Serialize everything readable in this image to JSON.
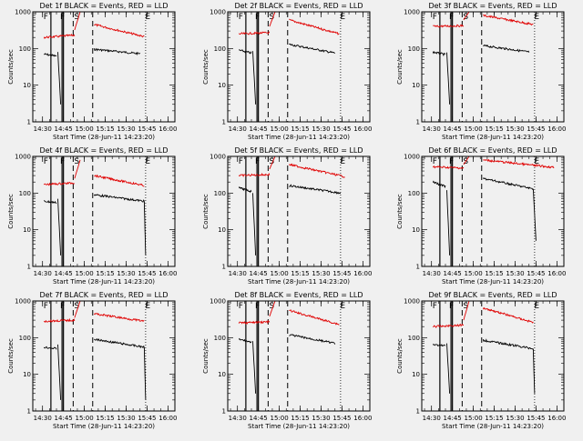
{
  "figure": {
    "background": "#f0f0f0",
    "colors": {
      "events": "#000000",
      "lld": "#e00000",
      "axes": "#000000"
    }
  },
  "chart_data": [
    {
      "type": "line",
      "title": "Det 1f BLACK = Events, RED = LLD",
      "xlabel": "Start Time (28-Jun-11 14:23:20)",
      "ylabel": "Counts/sec",
      "yscale": "log",
      "ylim": [
        1,
        1000
      ],
      "x_ticks": [
        "14:30",
        "14:45",
        "15:00",
        "15:15",
        "15:30",
        "15:45",
        "16:00"
      ],
      "y_ticks": [
        "1",
        "10",
        "100",
        "1000"
      ],
      "markers": [
        "F",
        "F",
        "S",
        "E"
      ],
      "series": [
        {
          "color": "#000000",
          "segments": [
            {
              "t0": "14:31",
              "t1": "14:40",
              "from": 70,
              "to": 62
            },
            {
              "t0": "14:41",
              "t1": "14:43",
              "from": 80,
              "to": 3
            },
            {
              "t0": "15:07",
              "t1": "15:40",
              "from": 95,
              "to": 72
            }
          ]
        },
        {
          "color": "#e00000",
          "segments": [
            {
              "t0": "14:31",
              "t1": "14:53",
              "from": 200,
              "to": 230
            },
            {
              "t0": "14:53",
              "t1": "14:57",
              "from": 320,
              "to": 1000
            },
            {
              "t0": "15:07",
              "t1": "15:43",
              "from": 450,
              "to": 210
            }
          ]
        }
      ],
      "vlines": [
        {
          "time": "14:36",
          "style": "solid"
        },
        {
          "time": "14:44",
          "style": "solid"
        },
        {
          "time": "14:45",
          "style": "solid"
        },
        {
          "time": "14:52",
          "style": "dashed"
        },
        {
          "time": "15:06",
          "style": "dashed"
        },
        {
          "time": "15:44",
          "style": "dotted"
        }
      ]
    },
    {
      "type": "line",
      "title": "Det 2f BLACK = Events, RED = LLD",
      "xlabel": "Start Time (28-Jun-11 14:23:20)",
      "ylabel": "Counts/sec",
      "yscale": "log",
      "ylim": [
        1,
        1000
      ],
      "x_ticks": [
        "14:30",
        "14:45",
        "15:00",
        "15:15",
        "15:30",
        "15:45",
        "16:00"
      ],
      "y_ticks": [
        "1",
        "10",
        "100",
        "1000"
      ],
      "markers": [
        "F",
        "F",
        "S",
        "E"
      ],
      "series": [
        {
          "color": "#000000",
          "segments": [
            {
              "t0": "14:31",
              "t1": "14:40",
              "from": 90,
              "to": 75
            },
            {
              "t0": "14:41",
              "t1": "14:43",
              "from": 85,
              "to": 3
            },
            {
              "t0": "15:07",
              "t1": "15:40",
              "from": 130,
              "to": 75
            }
          ]
        },
        {
          "color": "#e00000",
          "segments": [
            {
              "t0": "14:31",
              "t1": "14:53",
              "from": 250,
              "to": 270
            },
            {
              "t0": "14:53",
              "t1": "14:57",
              "from": 400,
              "to": 1000
            },
            {
              "t0": "15:07",
              "t1": "15:43",
              "from": 600,
              "to": 250
            }
          ]
        }
      ],
      "vlines": [
        {
          "time": "14:36",
          "style": "solid"
        },
        {
          "time": "14:44",
          "style": "solid"
        },
        {
          "time": "14:45",
          "style": "solid"
        },
        {
          "time": "14:52",
          "style": "dashed"
        },
        {
          "time": "15:06",
          "style": "dashed"
        },
        {
          "time": "15:44",
          "style": "dotted"
        }
      ]
    },
    {
      "type": "line",
      "title": "Det 3f BLACK = Events, RED = LLD",
      "xlabel": "Start Time (28-Jun-11 14:23:20)",
      "ylabel": "Counts/sec",
      "yscale": "log",
      "ylim": [
        1,
        1000
      ],
      "x_ticks": [
        "14:30",
        "14:45",
        "15:00",
        "15:15",
        "15:30",
        "15:45",
        "16:00"
      ],
      "y_ticks": [
        "1",
        "10",
        "100",
        "1000"
      ],
      "markers": [
        "F",
        "F",
        "S",
        "E"
      ],
      "series": [
        {
          "color": "#000000",
          "segments": [
            {
              "t0": "14:31",
              "t1": "14:40",
              "from": 80,
              "to": 68
            },
            {
              "t0": "14:41",
              "t1": "14:43",
              "from": 78,
              "to": 3
            },
            {
              "t0": "15:07",
              "t1": "15:40",
              "from": 120,
              "to": 80
            }
          ]
        },
        {
          "color": "#e00000",
          "segments": [
            {
              "t0": "14:31",
              "t1": "14:53",
              "from": 400,
              "to": 420
            },
            {
              "t0": "14:53",
              "t1": "14:57",
              "from": 600,
              "to": 1000
            },
            {
              "t0": "15:07",
              "t1": "15:43",
              "from": 800,
              "to": 450
            }
          ]
        }
      ],
      "vlines": [
        {
          "time": "14:36",
          "style": "solid"
        },
        {
          "time": "14:44",
          "style": "solid"
        },
        {
          "time": "14:45",
          "style": "solid"
        },
        {
          "time": "14:52",
          "style": "dashed"
        },
        {
          "time": "15:06",
          "style": "dashed"
        },
        {
          "time": "15:44",
          "style": "dotted"
        }
      ]
    },
    {
      "type": "line",
      "title": "Det 4f BLACK = Events, RED = LLD",
      "xlabel": "Start Time (28-Jun-11 14:23:20)",
      "ylabel": "Counts/sec",
      "yscale": "log",
      "ylim": [
        1,
        1000
      ],
      "x_ticks": [
        "14:30",
        "14:45",
        "15:00",
        "15:15",
        "15:30",
        "15:45",
        "16:00"
      ],
      "y_ticks": [
        "1",
        "10",
        "100",
        "1000"
      ],
      "markers": [
        "F",
        "F",
        "S",
        "E"
      ],
      "series": [
        {
          "color": "#000000",
          "segments": [
            {
              "t0": "14:31",
              "t1": "14:40",
              "from": 60,
              "to": 55
            },
            {
              "t0": "14:41",
              "t1": "14:43",
              "from": 70,
              "to": 2
            },
            {
              "t0": "15:07",
              "t1": "15:43",
              "from": 90,
              "to": 60
            },
            {
              "t0": "15:43",
              "t1": "15:44",
              "from": 60,
              "to": 2
            }
          ]
        },
        {
          "color": "#e00000",
          "segments": [
            {
              "t0": "14:31",
              "t1": "14:53",
              "from": 170,
              "to": 190
            },
            {
              "t0": "14:53",
              "t1": "14:57",
              "from": 250,
              "to": 800
            },
            {
              "t0": "15:07",
              "t1": "15:43",
              "from": 300,
              "to": 160
            }
          ]
        }
      ],
      "vlines": [
        {
          "time": "14:36",
          "style": "solid"
        },
        {
          "time": "14:44",
          "style": "solid"
        },
        {
          "time": "14:45",
          "style": "solid"
        },
        {
          "time": "14:52",
          "style": "dashed"
        },
        {
          "time": "15:06",
          "style": "dashed"
        },
        {
          "time": "15:44",
          "style": "dotted"
        }
      ]
    },
    {
      "type": "line",
      "title": "Det 5f BLACK = Events, RED = LLD",
      "xlabel": "Start Time (28-Jun-11 14:23:20)",
      "ylabel": "Counts/sec",
      "yscale": "log",
      "ylim": [
        1,
        1000
      ],
      "x_ticks": [
        "14:30",
        "14:45",
        "15:00",
        "15:15",
        "15:30",
        "15:45",
        "16:00"
      ],
      "y_ticks": [
        "1",
        "10",
        "100",
        "1000"
      ],
      "markers": [
        "F",
        "F",
        "S",
        "E"
      ],
      "series": [
        {
          "color": "#000000",
          "segments": [
            {
              "t0": "14:31",
              "t1": "14:40",
              "from": 140,
              "to": 110
            },
            {
              "t0": "14:41",
              "t1": "14:43",
              "from": 100,
              "to": 2
            },
            {
              "t0": "15:07",
              "t1": "15:44",
              "from": 160,
              "to": 100
            }
          ]
        },
        {
          "color": "#e00000",
          "segments": [
            {
              "t0": "14:31",
              "t1": "14:53",
              "from": 300,
              "to": 320
            },
            {
              "t0": "14:53",
              "t1": "14:57",
              "from": 450,
              "to": 1000
            },
            {
              "t0": "15:07",
              "t1": "15:47",
              "from": 600,
              "to": 280
            }
          ]
        }
      ],
      "vlines": [
        {
          "time": "14:36",
          "style": "solid"
        },
        {
          "time": "14:44",
          "style": "solid"
        },
        {
          "time": "14:45",
          "style": "solid"
        },
        {
          "time": "14:52",
          "style": "dashed"
        },
        {
          "time": "15:06",
          "style": "dashed"
        },
        {
          "time": "15:44",
          "style": "dotted"
        }
      ]
    },
    {
      "type": "line",
      "title": "Det 6f BLACK = Events, RED = LLD",
      "xlabel": "Start Time (28-Jun-11 14:23:20)",
      "ylabel": "Counts/sec",
      "yscale": "log",
      "ylim": [
        1,
        1000
      ],
      "x_ticks": [
        "14:30",
        "14:45",
        "15:00",
        "15:15",
        "15:30",
        "15:45",
        "16:00"
      ],
      "y_ticks": [
        "1",
        "10",
        "100",
        "1000"
      ],
      "markers": [
        "F",
        "F",
        "S",
        "E"
      ],
      "series": [
        {
          "color": "#000000",
          "segments": [
            {
              "t0": "14:31",
              "t1": "14:40",
              "from": 200,
              "to": 150
            },
            {
              "t0": "14:41",
              "t1": "14:43",
              "from": 120,
              "to": 2
            },
            {
              "t0": "15:07",
              "t1": "15:43",
              "from": 250,
              "to": 130
            },
            {
              "t0": "15:43",
              "t1": "15:45",
              "from": 130,
              "to": 5
            }
          ]
        },
        {
          "color": "#e00000",
          "segments": [
            {
              "t0": "14:31",
              "t1": "14:53",
              "from": 520,
              "to": 480
            },
            {
              "t0": "14:53",
              "t1": "14:57",
              "from": 600,
              "to": 1000
            },
            {
              "t0": "15:07",
              "t1": "15:58",
              "from": 800,
              "to": 500
            }
          ]
        }
      ],
      "vlines": [
        {
          "time": "14:36",
          "style": "solid"
        },
        {
          "time": "14:44",
          "style": "solid"
        },
        {
          "time": "14:45",
          "style": "solid"
        },
        {
          "time": "14:52",
          "style": "dashed"
        },
        {
          "time": "15:06",
          "style": "dashed"
        },
        {
          "time": "15:44",
          "style": "dotted"
        }
      ]
    },
    {
      "type": "line",
      "title": "Det 7f BLACK = Events, RED = LLD",
      "xlabel": "Start Time (28-Jun-11 14:23:20)",
      "ylabel": "Counts/sec",
      "yscale": "log",
      "ylim": [
        1,
        1000
      ],
      "x_ticks": [
        "14:30",
        "14:45",
        "15:00",
        "15:15",
        "15:30",
        "15:45",
        "16:00"
      ],
      "y_ticks": [
        "1",
        "10",
        "100",
        "1000"
      ],
      "markers": [
        "F",
        "F",
        "S",
        "E"
      ],
      "series": [
        {
          "color": "#000000",
          "segments": [
            {
              "t0": "14:31",
              "t1": "14:40",
              "from": 55,
              "to": 50
            },
            {
              "t0": "14:41",
              "t1": "14:43",
              "from": 65,
              "to": 2
            },
            {
              "t0": "15:07",
              "t1": "15:43",
              "from": 90,
              "to": 55
            },
            {
              "t0": "15:43",
              "t1": "15:44",
              "from": 55,
              "to": 2
            }
          ]
        },
        {
          "color": "#e00000",
          "segments": [
            {
              "t0": "14:31",
              "t1": "14:53",
              "from": 280,
              "to": 300
            },
            {
              "t0": "14:53",
              "t1": "14:57",
              "from": 350,
              "to": 1000
            },
            {
              "t0": "15:07",
              "t1": "15:43",
              "from": 450,
              "to": 280
            }
          ]
        }
      ],
      "vlines": [
        {
          "time": "14:36",
          "style": "solid"
        },
        {
          "time": "14:44",
          "style": "solid"
        },
        {
          "time": "14:45",
          "style": "solid"
        },
        {
          "time": "14:52",
          "style": "dashed"
        },
        {
          "time": "15:06",
          "style": "dashed"
        },
        {
          "time": "15:44",
          "style": "dotted"
        }
      ]
    },
    {
      "type": "line",
      "title": "Det 8f BLACK = Events, RED = LLD",
      "xlabel": "Start Time (28-Jun-11 14:23:20)",
      "ylabel": "Counts/sec",
      "yscale": "log",
      "ylim": [
        1,
        1000
      ],
      "x_ticks": [
        "14:30",
        "14:45",
        "15:00",
        "15:15",
        "15:30",
        "15:45",
        "16:00"
      ],
      "y_ticks": [
        "1",
        "10",
        "100",
        "1000"
      ],
      "markers": [
        "F",
        "F",
        "S",
        "E"
      ],
      "series": [
        {
          "color": "#000000",
          "segments": [
            {
              "t0": "14:31",
              "t1": "14:40",
              "from": 90,
              "to": 75
            },
            {
              "t0": "14:41",
              "t1": "14:43",
              "from": 80,
              "to": 3
            },
            {
              "t0": "15:07",
              "t1": "15:40",
              "from": 120,
              "to": 70
            }
          ]
        },
        {
          "color": "#e00000",
          "segments": [
            {
              "t0": "14:31",
              "t1": "14:53",
              "from": 250,
              "to": 270
            },
            {
              "t0": "14:53",
              "t1": "14:57",
              "from": 380,
              "to": 1000
            },
            {
              "t0": "15:07",
              "t1": "15:43",
              "from": 550,
              "to": 230
            }
          ]
        }
      ],
      "vlines": [
        {
          "time": "14:36",
          "style": "solid"
        },
        {
          "time": "14:44",
          "style": "solid"
        },
        {
          "time": "14:45",
          "style": "solid"
        },
        {
          "time": "14:52",
          "style": "dashed"
        },
        {
          "time": "15:06",
          "style": "dashed"
        },
        {
          "time": "15:44",
          "style": "dotted"
        }
      ]
    },
    {
      "type": "line",
      "title": "Det 9f BLACK = Events, RED = LLD",
      "xlabel": "Start Time (28-Jun-11 14:23:20)",
      "ylabel": "Counts/sec",
      "yscale": "log",
      "ylim": [
        1,
        1000
      ],
      "x_ticks": [
        "14:30",
        "14:45",
        "15:00",
        "15:15",
        "15:30",
        "15:45",
        "16:00"
      ],
      "y_ticks": [
        "1",
        "10",
        "100",
        "1000"
      ],
      "markers": [
        "F",
        "F",
        "S",
        "E"
      ],
      "series": [
        {
          "color": "#000000",
          "segments": [
            {
              "t0": "14:31",
              "t1": "14:40",
              "from": 65,
              "to": 60
            },
            {
              "t0": "14:41",
              "t1": "14:43",
              "from": 70,
              "to": 3
            },
            {
              "t0": "15:07",
              "t1": "15:43",
              "from": 85,
              "to": 50
            },
            {
              "t0": "15:43",
              "t1": "15:44",
              "from": 50,
              "to": 3
            }
          ]
        },
        {
          "color": "#e00000",
          "segments": [
            {
              "t0": "14:31",
              "t1": "14:53",
              "from": 200,
              "to": 220
            },
            {
              "t0": "14:53",
              "t1": "14:57",
              "from": 300,
              "to": 1000
            },
            {
              "t0": "15:07",
              "t1": "15:43",
              "from": 650,
              "to": 260
            }
          ]
        }
      ],
      "vlines": [
        {
          "time": "14:36",
          "style": "solid"
        },
        {
          "time": "14:44",
          "style": "solid"
        },
        {
          "time": "14:45",
          "style": "solid"
        },
        {
          "time": "14:52",
          "style": "dashed"
        },
        {
          "time": "15:06",
          "style": "dashed"
        },
        {
          "time": "15:44",
          "style": "dotted"
        }
      ]
    }
  ]
}
